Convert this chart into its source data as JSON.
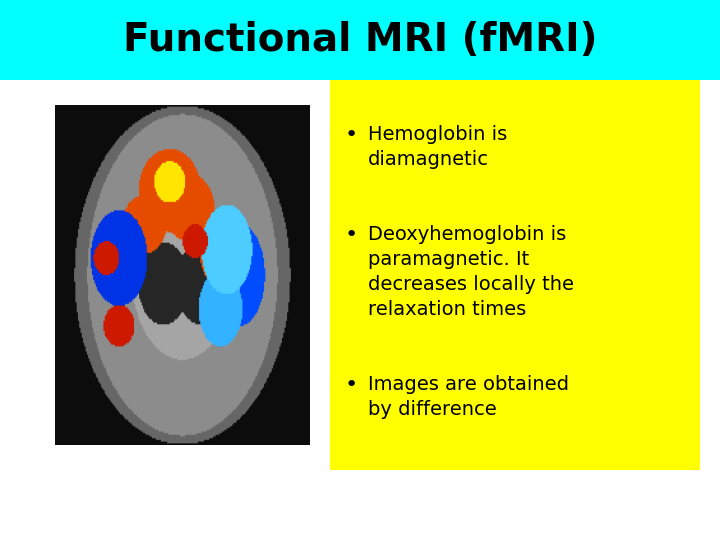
{
  "title": "Functional MRI (fMRI)",
  "title_bg_color": "#00FFFF",
  "slide_bg_color": "#FFFFFF",
  "bullet_bg_color": "#FFFF00",
  "bullet_points": [
    "Hemoglobin is\ndiamagnetic",
    "Deoxyhemoglobin is\nparamagnetic. It\ndecreases locally the\nrelaxation times",
    "Images are obtained\nby difference"
  ],
  "title_fontsize": 28,
  "bullet_fontsize": 14,
  "title_font": "DejaVu Sans",
  "bullet_font": "DejaVu Sans"
}
